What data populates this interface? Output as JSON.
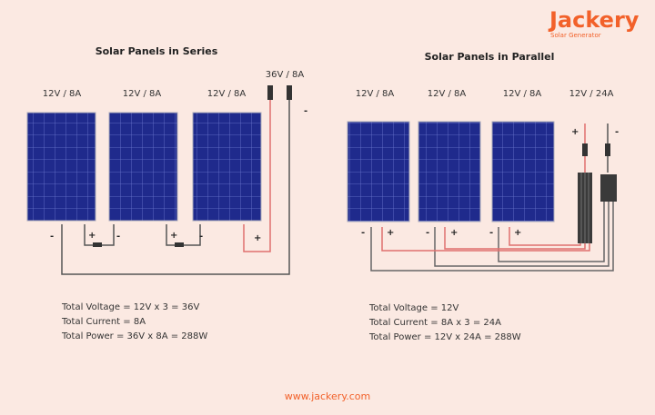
{
  "brand": {
    "name": "Jackery",
    "tagline": "Solar Generator",
    "url": "www.jackery.com",
    "color": "#f2612a"
  },
  "colors": {
    "background": "#fbe9e2",
    "panel": "#1e2a8a",
    "positive_wire": "#e0706e",
    "negative_wire": "#555555"
  },
  "series": {
    "title": "Solar Panels in Series",
    "panel_labels": [
      "12V / 8A",
      "12V / 8A",
      "12V / 8A"
    ],
    "output_label": "36V / 8A",
    "output_negative": "-",
    "terminal_plus": "+",
    "terminal_minus": "-",
    "info": [
      "Total Voltage = 12V x 3 = 36V",
      "Total Current = 8A",
      "Total Power = 36V x 8A = 288W"
    ]
  },
  "parallel": {
    "title": "Solar Panels in Parallel",
    "panel_labels": [
      "12V / 8A",
      "12V / 8A",
      "12V / 8A"
    ],
    "output_label": "12V / 24A",
    "output_plus": "+",
    "output_minus": "-",
    "terminal_plus": "+",
    "terminal_minus": "-",
    "info": [
      "Total Voltage = 12V",
      "Total Current = 8A x 3 = 24A",
      "Total Power = 12V x 24A = 288W"
    ]
  }
}
